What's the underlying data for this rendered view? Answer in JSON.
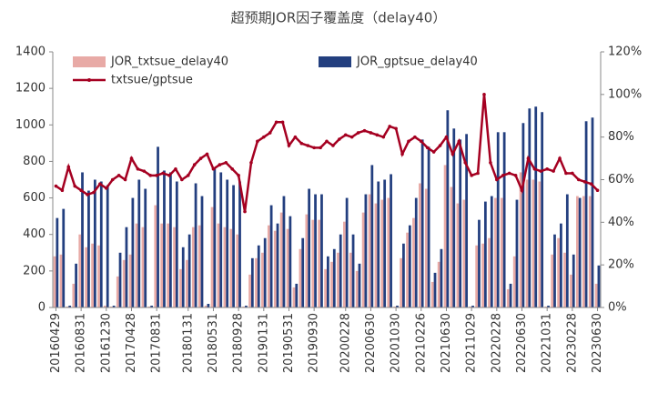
{
  "chart_data": {
    "type": "bar_line",
    "title": "超预期JOR因子覆盖度（delay40）",
    "categories": [
      "20160429",
      null,
      null,
      null,
      "20160831",
      null,
      null,
      null,
      "20161230",
      null,
      null,
      null,
      "20170428",
      null,
      null,
      null,
      "20170831",
      null,
      null,
      null,
      null,
      "20180131",
      null,
      null,
      null,
      "20180531",
      null,
      null,
      null,
      "20180928",
      null,
      null,
      null,
      "20190131",
      null,
      null,
      null,
      "20190531",
      null,
      null,
      null,
      "20190930",
      null,
      null,
      null,
      null,
      "20200228",
      null,
      null,
      null,
      "20200630",
      null,
      null,
      null,
      "20201030",
      null,
      null,
      null,
      "20210226",
      null,
      null,
      null,
      "20210630",
      null,
      null,
      null,
      "20211029",
      null,
      null,
      null,
      "20220228",
      null,
      null,
      null,
      "20220630",
      null,
      null,
      null,
      "20221031",
      null,
      null,
      null,
      "20230228",
      null,
      null,
      null,
      "20230630"
    ],
    "series": [
      {
        "name": "JOR_txtsue_delay40",
        "color": "#e8aaa6",
        "kind": "bar",
        "values": [
          280,
          290,
          5,
          130,
          400,
          330,
          350,
          340,
          10,
          5,
          170,
          260,
          290,
          460,
          440,
          5,
          560,
          460,
          460,
          440,
          210,
          260,
          440,
          450,
          10,
          550,
          460,
          440,
          430,
          400,
          5,
          180,
          270,
          300,
          450,
          420,
          520,
          430,
          110,
          320,
          510,
          480,
          480,
          210,
          250,
          300,
          470,
          300,
          200,
          520,
          620,
          570,
          590,
          600,
          5,
          270,
          410,
          490,
          680,
          650,
          140,
          250,
          780,
          660,
          570,
          590,
          5,
          340,
          350,
          380,
          600,
          600,
          100,
          280,
          740,
          700,
          700,
          690,
          5,
          290,
          380,
          300,
          180,
          610,
          610,
          610,
          130
        ]
      },
      {
        "name": "JOR_gptsue_delay40",
        "color": "#233f7f",
        "kind": "bar",
        "values": [
          490,
          540,
          10,
          240,
          740,
          640,
          700,
          690,
          670,
          10,
          300,
          440,
          600,
          700,
          650,
          10,
          880,
          750,
          740,
          690,
          330,
          400,
          680,
          610,
          20,
          760,
          740,
          700,
          670,
          690,
          10,
          270,
          340,
          380,
          560,
          460,
          610,
          500,
          130,
          380,
          650,
          620,
          620,
          280,
          320,
          400,
          600,
          400,
          240,
          620,
          780,
          690,
          700,
          730,
          10,
          350,
          450,
          600,
          920,
          880,
          190,
          320,
          1080,
          980,
          920,
          950,
          10,
          480,
          580,
          610,
          960,
          960,
          130,
          590,
          1010,
          1090,
          1100,
          1070,
          10,
          400,
          460,
          620,
          290,
          600,
          1020,
          1040,
          230
        ]
      },
      {
        "name": "txtsue/gptsue",
        "color": "#a50021",
        "kind": "line",
        "axis": "y2",
        "values": [
          57,
          55,
          66,
          57,
          55,
          53,
          54,
          58,
          56,
          60,
          62,
          60,
          70,
          65,
          64,
          62,
          62,
          63,
          62,
          65,
          60,
          62,
          67,
          70,
          72,
          65,
          67,
          68,
          65,
          62,
          45,
          68,
          78,
          80,
          82,
          87,
          87,
          76,
          80,
          77,
          76,
          75,
          75,
          78,
          76,
          79,
          81,
          80,
          82,
          83,
          82,
          81,
          80,
          85,
          84,
          72,
          78,
          80,
          78,
          75,
          73,
          76,
          80,
          72,
          78,
          68,
          62,
          63,
          100,
          68,
          60,
          62,
          63,
          62,
          55,
          70,
          65,
          64,
          65,
          64,
          70,
          63,
          63,
          60,
          59,
          58,
          55
        ]
      }
    ],
    "ylim": [
      0,
      1400
    ],
    "yticks": [
      0,
      200,
      400,
      600,
      800,
      1000,
      1200,
      1400
    ],
    "y2lim": [
      0,
      120
    ],
    "y2ticks": [
      {
        "value": 0,
        "label": "0%"
      },
      {
        "value": 20,
        "label": "20%"
      },
      {
        "value": 40,
        "label": "40%"
      },
      {
        "value": 60,
        "label": "60%"
      },
      {
        "value": 80,
        "label": "80%"
      },
      {
        "value": 100,
        "label": "100%"
      },
      {
        "value": 120,
        "label": "120%"
      }
    ]
  }
}
